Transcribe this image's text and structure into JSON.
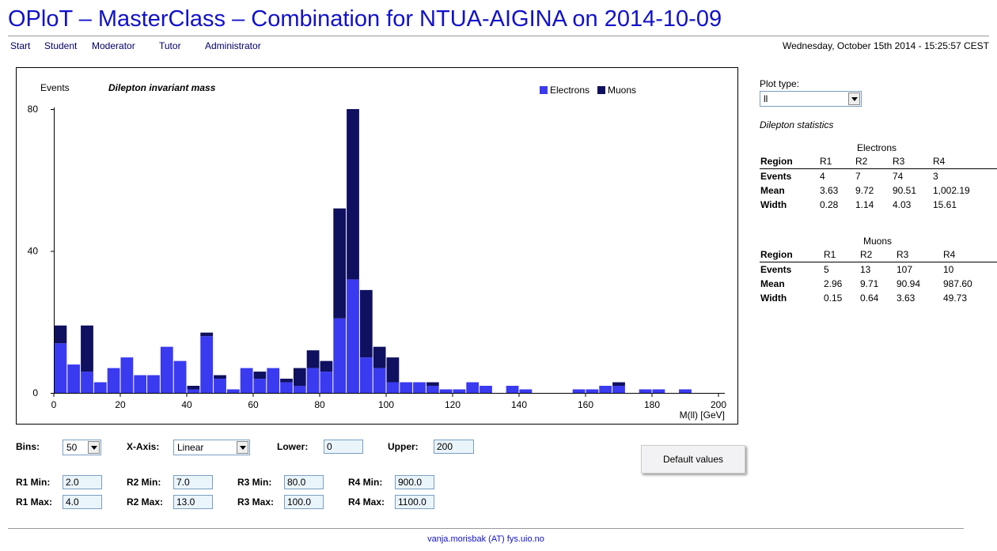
{
  "header": {
    "title": "OPloT – MasterClass – Combination for NTUA-AIGINA on 2014-10-09",
    "nav": [
      "Start",
      "Student",
      "Moderator",
      "Tutor",
      "Administrator"
    ],
    "datetime": "Wednesday, October 15th 2014 - 15:25:57 CEST"
  },
  "chart_data": {
    "type": "bar",
    "stacked": true,
    "title": "Dilepton invariant mass",
    "ylabel": "Events",
    "xlabel": "M(ll) [GeV]",
    "xlim": [
      0,
      200
    ],
    "ylim": [
      0,
      80
    ],
    "bin_width": 4,
    "x_ticks": [
      0,
      20,
      40,
      60,
      80,
      100,
      120,
      140,
      160,
      180,
      200
    ],
    "y_ticks": [
      0,
      40,
      80
    ],
    "legend": "top-right",
    "series": [
      {
        "name": "Electrons",
        "color": "#3a3af0",
        "values": [
          14,
          8,
          6,
          3,
          7,
          10,
          5,
          5,
          13,
          9,
          1,
          16,
          4,
          1,
          7,
          4,
          7,
          3,
          2,
          7,
          6,
          21,
          32,
          10,
          7,
          3,
          3,
          3,
          2,
          1,
          1,
          3,
          2,
          0,
          2,
          1,
          0,
          0,
          0,
          1,
          1,
          2,
          2,
          0,
          1,
          1,
          0,
          1,
          0,
          0
        ]
      },
      {
        "name": "Muons",
        "color": "#101060",
        "values": [
          5,
          0,
          13,
          0,
          0,
          0,
          0,
          0,
          0,
          0,
          1,
          1,
          1,
          0,
          0,
          2,
          0,
          1,
          5,
          5,
          3,
          31,
          48,
          19,
          6,
          7,
          0,
          0,
          1,
          0,
          0,
          0,
          0,
          0,
          0,
          0,
          0,
          0,
          0,
          0,
          0,
          0,
          1,
          0,
          0,
          0,
          0,
          0,
          0,
          0
        ]
      }
    ]
  },
  "sidebar": {
    "plot_type_label": "Plot type:",
    "plot_type_value": "ll",
    "stats_title": "Dilepton statistics",
    "electrons": {
      "title": "Electrons",
      "headers": [
        "Region",
        "R1",
        "R2",
        "R3",
        "R4"
      ],
      "rows": [
        {
          "label": "Events",
          "values": [
            "4",
            "7",
            "74",
            "3"
          ]
        },
        {
          "label": "Mean",
          "values": [
            "3.63",
            "9.72",
            "90.51",
            "1,002.19"
          ]
        },
        {
          "label": "Width",
          "values": [
            "0.28",
            "1.14",
            "4.03",
            "15.61"
          ]
        }
      ]
    },
    "muons": {
      "title": "Muons",
      "headers": [
        "Region",
        "R1",
        "R2",
        "R3",
        "R4"
      ],
      "rows": [
        {
          "label": "Events",
          "values": [
            "5",
            "13",
            "107",
            "10"
          ]
        },
        {
          "label": "Mean",
          "values": [
            "2.96",
            "9.71",
            "90.94",
            "987.60"
          ]
        },
        {
          "label": "Width",
          "values": [
            "0.15",
            "0.64",
            "3.63",
            "49.73"
          ]
        }
      ]
    }
  },
  "controls": {
    "bins_label": "Bins:",
    "bins_value": "50",
    "xaxis_label": "X-Axis:",
    "xaxis_value": "Linear",
    "lower_label": "Lower:",
    "lower_value": "0",
    "upper_label": "Upper:",
    "upper_value": "200",
    "default_button": "Default values",
    "r1min_label": "R1 Min:",
    "r1min": "2.0",
    "r1max_label": "R1 Max:",
    "r1max": "4.0",
    "r2min_label": "R2 Min:",
    "r2min": "7.0",
    "r2max_label": "R2 Max:",
    "r2max": "13.0",
    "r3min_label": "R3 Min:",
    "r3min": "80.0",
    "r3max_label": "R3 Max:",
    "r3max": "100.0",
    "r4min_label": "R4 Min:",
    "r4min": "900.0",
    "r4max_label": "R4 Max:",
    "r4max": "1100.0"
  },
  "footer": {
    "email": "vanja.morisbak (AT) fys.uio.no"
  }
}
